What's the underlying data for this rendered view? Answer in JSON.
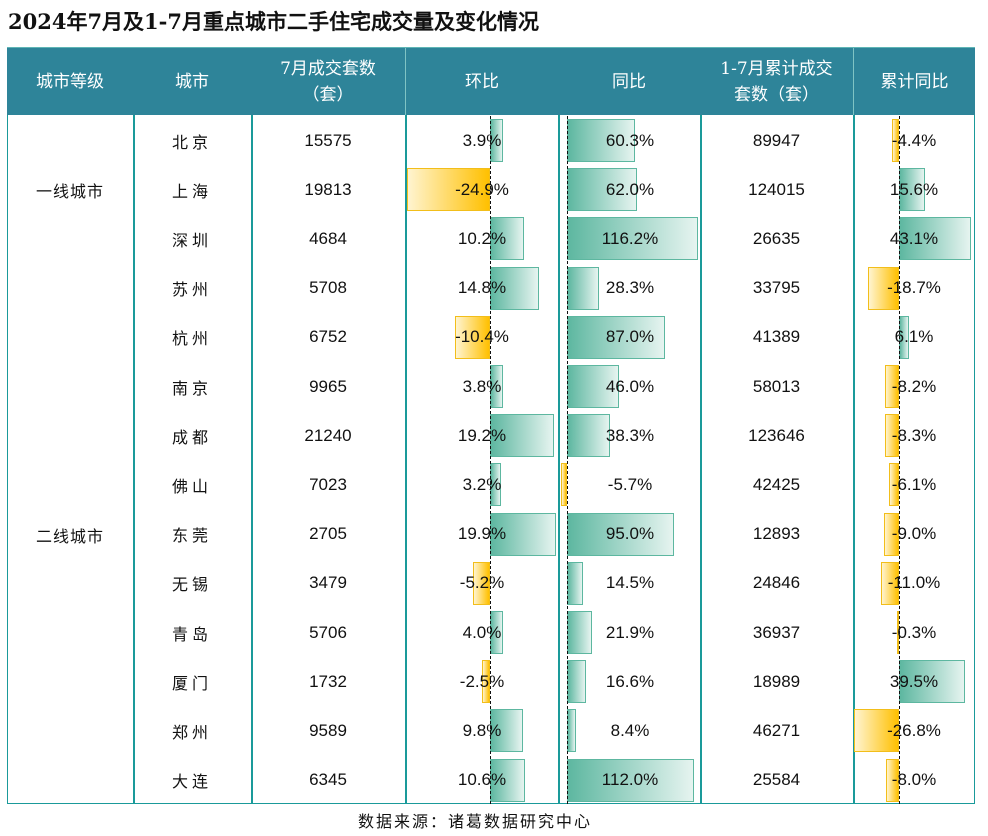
{
  "title": "2024年7月及1-7月重点城市二手住宅成交量及变化情况",
  "source": "数据来源：诸葛数据研究中心",
  "headers": {
    "tier": "城市等级",
    "city": "城市",
    "july_line1": "7月成交套数",
    "july_line2": "（套）",
    "mom": "环比",
    "yoy": "同比",
    "cum_line1": "1-7月累计成交",
    "cum_line2": "套数（套）",
    "cum_yoy": "累计同比"
  },
  "tiers": [
    {
      "label": "一线城市",
      "row_count": 3
    },
    {
      "label": "二线城市",
      "row_count": 11
    }
  ],
  "colors": {
    "header_bg": "#2E8499",
    "border": "#1A9A9A",
    "positive_bar": "#5DB7A0",
    "negative_bar": "#FFC000"
  },
  "chart_data": {
    "type": "table",
    "title": "2024年7月及1-7月重点城市二手住宅成交量及变化情况",
    "columns": [
      "城市等级",
      "城市",
      "7月成交套数（套）",
      "环比",
      "同比",
      "1-7月累计成交套数（套）",
      "累计同比"
    ],
    "rows": [
      {
        "tier": "一线城市",
        "city": "北京",
        "july": "15575",
        "mom": "3.9%",
        "mom_value": 3.9,
        "yoy": "60.3%",
        "yoy_value": 60.3,
        "cum": "89947",
        "cum_yoy": "-4.4%",
        "cum_yoy_value": -4.4
      },
      {
        "tier": "一线城市",
        "city": "上海",
        "july": "19813",
        "mom": "-24.9%",
        "mom_value": -24.9,
        "yoy": "62.0%",
        "yoy_value": 62.0,
        "cum": "124015",
        "cum_yoy": "15.6%",
        "cum_yoy_value": 15.6
      },
      {
        "tier": "一线城市",
        "city": "深圳",
        "july": "4684",
        "mom": "10.2%",
        "mom_value": 10.2,
        "yoy": "116.2%",
        "yoy_value": 116.2,
        "cum": "26635",
        "cum_yoy": "43.1%",
        "cum_yoy_value": 43.1
      },
      {
        "tier": "二线城市",
        "city": "苏州",
        "july": "5708",
        "mom": "14.8%",
        "mom_value": 14.8,
        "yoy": "28.3%",
        "yoy_value": 28.3,
        "cum": "33795",
        "cum_yoy": "-18.7%",
        "cum_yoy_value": -18.7
      },
      {
        "tier": "二线城市",
        "city": "杭州",
        "july": "6752",
        "mom": "-10.4%",
        "mom_value": -10.4,
        "yoy": "87.0%",
        "yoy_value": 87.0,
        "cum": "41389",
        "cum_yoy": "6.1%",
        "cum_yoy_value": 6.1
      },
      {
        "tier": "二线城市",
        "city": "南京",
        "july": "9965",
        "mom": "3.8%",
        "mom_value": 3.8,
        "yoy": "46.0%",
        "yoy_value": 46.0,
        "cum": "58013",
        "cum_yoy": "-8.2%",
        "cum_yoy_value": -8.2
      },
      {
        "tier": "二线城市",
        "city": "成都",
        "july": "21240",
        "mom": "19.2%",
        "mom_value": 19.2,
        "yoy": "38.3%",
        "yoy_value": 38.3,
        "cum": "123646",
        "cum_yoy": "-8.3%",
        "cum_yoy_value": -8.3
      },
      {
        "tier": "二线城市",
        "city": "佛山",
        "july": "7023",
        "mom": "3.2%",
        "mom_value": 3.2,
        "yoy": "-5.7%",
        "yoy_value": -5.7,
        "cum": "42425",
        "cum_yoy": "-6.1%",
        "cum_yoy_value": -6.1
      },
      {
        "tier": "二线城市",
        "city": "东莞",
        "july": "2705",
        "mom": "19.9%",
        "mom_value": 19.9,
        "yoy": "95.0%",
        "yoy_value": 95.0,
        "cum": "12893",
        "cum_yoy": "-9.0%",
        "cum_yoy_value": -9.0
      },
      {
        "tier": "二线城市",
        "city": "无锡",
        "july": "3479",
        "mom": "-5.2%",
        "mom_value": -5.2,
        "yoy": "14.5%",
        "yoy_value": 14.5,
        "cum": "24846",
        "cum_yoy": "-11.0%",
        "cum_yoy_value": -11.0
      },
      {
        "tier": "二线城市",
        "city": "青岛",
        "july": "5706",
        "mom": "4.0%",
        "mom_value": 4.0,
        "yoy": "21.9%",
        "yoy_value": 21.9,
        "cum": "36937",
        "cum_yoy": "-0.3%",
        "cum_yoy_value": -0.3
      },
      {
        "tier": "二线城市",
        "city": "厦门",
        "july": "1732",
        "mom": "-2.5%",
        "mom_value": -2.5,
        "yoy": "16.6%",
        "yoy_value": 16.6,
        "cum": "18989",
        "cum_yoy": "39.5%",
        "cum_yoy_value": 39.5
      },
      {
        "tier": "二线城市",
        "city": "郑州",
        "july": "9589",
        "mom": "9.8%",
        "mom_value": 9.8,
        "yoy": "8.4%",
        "yoy_value": 8.4,
        "cum": "46271",
        "cum_yoy": "-26.8%",
        "cum_yoy_value": -26.8
      },
      {
        "tier": "二线城市",
        "city": "大连",
        "july": "6345",
        "mom": "10.6%",
        "mom_value": 10.6,
        "yoy": "112.0%",
        "yoy_value": 112.0,
        "cum": "25584",
        "cum_yoy": "-8.0%",
        "cum_yoy_value": -8.0
      }
    ]
  }
}
